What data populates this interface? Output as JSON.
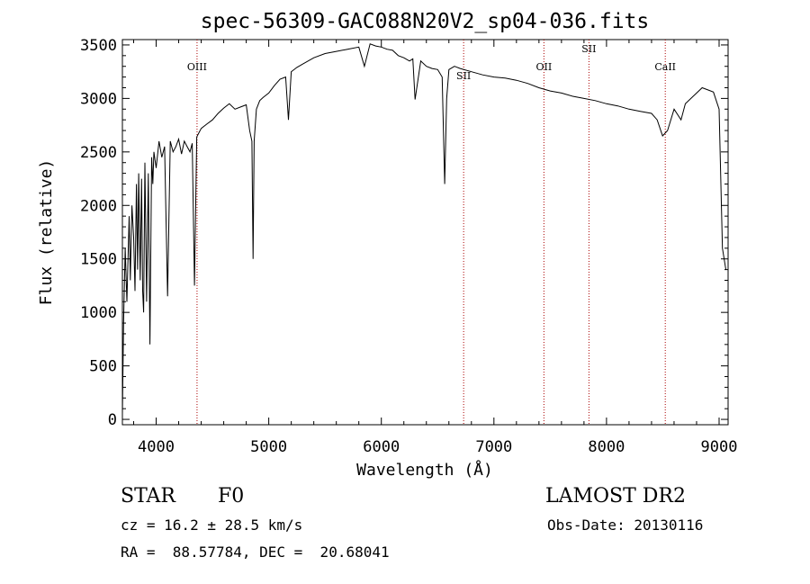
{
  "chart_data": {
    "type": "line",
    "title": "spec-56309-GAC088N20V2_sp04-036.fits",
    "xlabel": "Wavelength (Å)",
    "ylabel": "Flux (relative)",
    "xlim": [
      3700,
      9080
    ],
    "ylim": [
      -50,
      3550
    ],
    "xticks": [
      4000,
      5000,
      6000,
      7000,
      8000,
      9000
    ],
    "yticks": [
      0,
      500,
      1000,
      1500,
      2000,
      2500,
      3000,
      3500
    ],
    "grid": false,
    "line_color": "#000000",
    "marker_color": "#aa0000",
    "lines": [
      {
        "label": "OIII",
        "x": 4363
      },
      {
        "label": "SII",
        "x": 6731
      },
      {
        "label": "OII",
        "x": 7444
      },
      {
        "label": "SII",
        "x": 7844
      },
      {
        "label": "CaII",
        "x": 8522
      }
    ],
    "series": [
      {
        "x": [
          3700,
          3710,
          3725,
          3740,
          3760,
          3770,
          3785,
          3800,
          3812,
          3825,
          3835,
          3845,
          3858,
          3870,
          3880,
          3889,
          3900,
          3915,
          3930,
          3945,
          3960,
          3970,
          3980,
          4000,
          4025,
          4050,
          4075,
          4101,
          4125,
          4150,
          4175,
          4200,
          4225,
          4250,
          4275,
          4300,
          4320,
          4340,
          4360,
          4380,
          4400,
          4450,
          4500,
          4550,
          4600,
          4650,
          4700,
          4750,
          4800,
          4830,
          4850,
          4861,
          4870,
          4890,
          4920,
          4950,
          5000,
          5050,
          5100,
          5150,
          5175,
          5200,
          5250,
          5300,
          5400,
          5500,
          5600,
          5700,
          5800,
          5850,
          5900,
          5950,
          6000,
          6050,
          6100,
          6150,
          6200,
          6250,
          6280,
          6300,
          6350,
          6400,
          6450,
          6500,
          6540,
          6563,
          6580,
          6600,
          6650,
          6700,
          6800,
          6900,
          7000,
          7100,
          7200,
          7300,
          7400,
          7500,
          7600,
          7700,
          7800,
          7900,
          8000,
          8100,
          8200,
          8300,
          8400,
          8450,
          8498,
          8542,
          8600,
          8662,
          8700,
          8750,
          8800,
          8850,
          8900,
          8950,
          9000,
          9030,
          9060
        ],
        "y": [
          50,
          900,
          1600,
          1100,
          1900,
          1300,
          2000,
          1700,
          1200,
          2200,
          1400,
          2300,
          1300,
          2250,
          1200,
          1000,
          2400,
          1100,
          2300,
          700,
          2450,
          2200,
          2500,
          2350,
          2600,
          2450,
          2550,
          1150,
          2600,
          2500,
          2550,
          2620,
          2480,
          2600,
          2550,
          2500,
          2580,
          1250,
          2640,
          2680,
          2720,
          2760,
          2800,
          2860,
          2910,
          2950,
          2900,
          2920,
          2940,
          2700,
          2600,
          1500,
          2600,
          2900,
          2980,
          3010,
          3050,
          3120,
          3180,
          3200,
          2800,
          3250,
          3290,
          3320,
          3380,
          3420,
          3440,
          3460,
          3480,
          3300,
          3510,
          3490,
          3480,
          3460,
          3450,
          3400,
          3380,
          3350,
          3370,
          2990,
          3350,
          3300,
          3280,
          3270,
          3200,
          2200,
          3000,
          3270,
          3300,
          3280,
          3250,
          3220,
          3200,
          3190,
          3170,
          3140,
          3100,
          3070,
          3050,
          3020,
          3000,
          2980,
          2950,
          2930,
          2900,
          2880,
          2860,
          2800,
          2650,
          2700,
          2900,
          2800,
          2950,
          3000,
          3050,
          3100,
          3080,
          3060,
          2900,
          1600,
          1400
        ]
      }
    ]
  },
  "footer": {
    "object": "STAR",
    "subclass": "F0",
    "survey": "LAMOST DR2",
    "cz": "cz = 16.2 ± 28.5 km/s",
    "obs_date": "Obs-Date: 20130116",
    "coords": "RA =  88.57784, DEC =  20.68041"
  }
}
